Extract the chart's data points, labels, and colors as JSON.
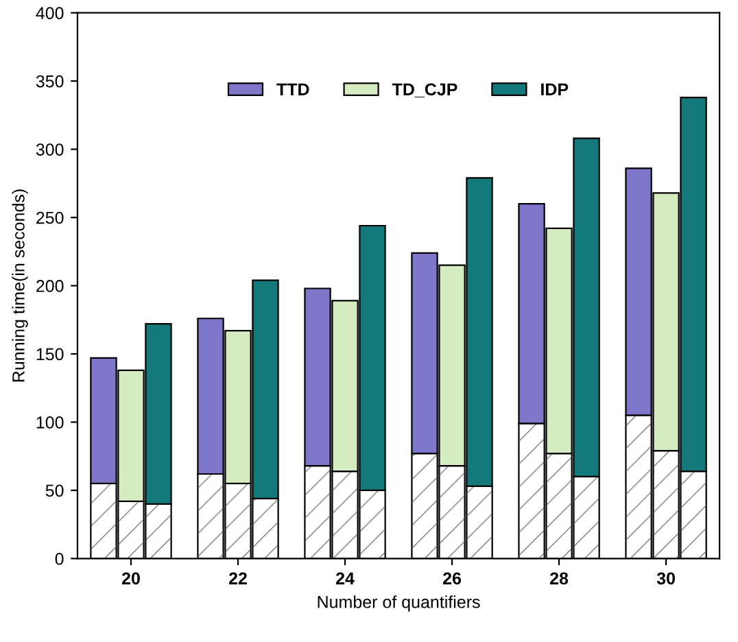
{
  "chart_data": {
    "type": "bar",
    "stacked": true,
    "xlabel": "Number of quantifiers",
    "ylabel": "Running time(in seconds)",
    "categories": [
      null,
      "20",
      null,
      null,
      "22",
      null,
      null,
      "24",
      null,
      null,
      "26",
      null,
      null,
      "28",
      null,
      null,
      "30",
      null
    ],
    "series": [
      {
        "color": "#ffffff",
        "values": [
          55,
          42,
          40,
          62,
          55,
          44,
          68,
          64,
          50,
          77,
          68,
          53,
          99,
          77,
          60,
          105,
          79,
          64
        ]
      },
      {
        "name": "TTD",
        "color": "#7e76c8",
        "values": [
          92,
          null,
          null,
          114,
          null,
          null,
          130,
          null,
          null,
          147,
          null,
          null,
          161,
          null,
          null,
          181,
          null,
          null
        ]
      },
      {
        "name": "TD_CJP",
        "color": "#d4ecc0",
        "values": [
          null,
          96,
          null,
          null,
          112,
          null,
          null,
          125,
          null,
          null,
          147,
          null,
          null,
          165,
          null,
          null,
          189,
          null
        ]
      },
      {
        "name": "IDP",
        "color": "#13797a",
        "values": [
          null,
          null,
          132,
          null,
          null,
          160,
          null,
          null,
          194,
          null,
          null,
          226,
          null,
          null,
          248,
          null,
          null,
          274
        ]
      }
    ],
    "ylim": [
      0,
      400
    ],
    "yticks": [
      0,
      50,
      100,
      150,
      200,
      250,
      300,
      350,
      400
    ],
    "legend": "top",
    "grid": false
  }
}
